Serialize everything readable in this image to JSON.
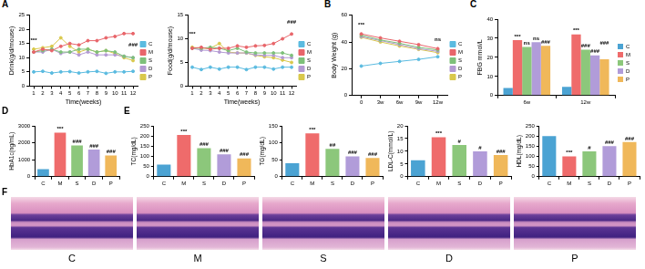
{
  "chart_data": [
    {
      "type": "line",
      "panel": "A",
      "xlabel": "Time(weeks)",
      "ylabel": "Drink(g/d/mouse)",
      "categories": [
        "1",
        "2",
        "3",
        "4",
        "5",
        "6",
        "7",
        "8",
        "9",
        "10",
        "11",
        "12"
      ],
      "series": [
        {
          "name": "C",
          "color": "#5bbbe0",
          "values": [
            5,
            5.2,
            4.6,
            5,
            5.1,
            4.6,
            5,
            5.2,
            4.5,
            5,
            5,
            5.2
          ]
        },
        {
          "name": "M",
          "color": "#e8656a",
          "values": [
            12,
            13,
            12.5,
            14,
            15,
            14.5,
            16,
            16,
            17,
            17.5,
            18.5,
            18.5
          ]
        },
        {
          "name": "S",
          "color": "#7ec07a",
          "values": [
            12,
            12.5,
            13,
            12,
            12,
            13,
            13,
            12,
            12.5,
            12,
            10.5,
            10
          ]
        },
        {
          "name": "D",
          "color": "#b39ad3",
          "values": [
            12,
            12,
            13,
            11.5,
            12,
            11,
            12,
            11,
            11,
            11,
            10.5,
            10
          ]
        },
        {
          "name": "P",
          "color": "#d9c84c",
          "values": [
            13,
            13.5,
            14,
            17,
            14,
            12,
            13,
            12,
            12.5,
            11.5,
            10,
            9
          ]
        }
      ],
      "ylim": [
        0,
        25
      ],
      "yticks": [
        0,
        5,
        10,
        15,
        20,
        25
      ],
      "grid": false,
      "legend": "right",
      "annotations": [
        {
          "text": "***",
          "x": "1",
          "y": 16
        },
        {
          "text": "###",
          "x": "12",
          "y": 14.5
        }
      ]
    },
    {
      "type": "line",
      "xlabel": "Time(weeks)",
      "ylabel": "Food(g/d/mouse)",
      "categories": [
        "1",
        "2",
        "3",
        "4",
        "5",
        "6",
        "7",
        "8",
        "9",
        "10",
        "11",
        "12"
      ],
      "series": [
        {
          "name": "C",
          "color": "#5bbbe0",
          "values": [
            4,
            3.5,
            4,
            3.6,
            4,
            4,
            3.5,
            4,
            4,
            3.6,
            4,
            4
          ]
        },
        {
          "name": "M",
          "color": "#e8656a",
          "values": [
            8,
            8.2,
            7.8,
            8,
            8,
            8.5,
            8.2,
            8.5,
            8.6,
            9,
            10,
            11
          ]
        },
        {
          "name": "S",
          "color": "#7ec07a",
          "values": [
            8,
            8,
            8.2,
            8,
            7.5,
            8,
            7.2,
            7,
            7,
            7,
            7,
            6.5
          ]
        },
        {
          "name": "D",
          "color": "#b39ad3",
          "values": [
            8,
            7.6,
            7.5,
            7.2,
            7,
            7,
            7,
            6.6,
            6.5,
            6.5,
            6,
            6
          ]
        },
        {
          "name": "P",
          "color": "#d9c84c",
          "values": [
            8.2,
            8,
            8,
            9,
            7.2,
            7,
            7,
            6.5,
            6.2,
            6,
            5.5,
            5
          ]
        }
      ],
      "ylim": [
        0,
        15
      ],
      "yticks": [
        0,
        5,
        10,
        15
      ],
      "grid": false,
      "legend": "right",
      "annotations": [
        {
          "text": "***",
          "x": "1",
          "y": 11
        },
        {
          "text": "###",
          "x": "12",
          "y": 13.5
        }
      ]
    },
    {
      "type": "line",
      "panel": "B",
      "ylabel": "Body Weight (g)",
      "categories": [
        "0",
        "3w",
        "6w",
        "9w",
        "12w"
      ],
      "series": [
        {
          "name": "C",
          "color": "#5bbbe0",
          "values": [
            22,
            24,
            25.5,
            27,
            29
          ]
        },
        {
          "name": "M",
          "color": "#e8656a",
          "values": [
            46,
            43,
            40.5,
            38,
            35
          ]
        },
        {
          "name": "S",
          "color": "#7ec07a",
          "values": [
            45,
            41.5,
            39,
            36,
            34
          ]
        },
        {
          "name": "D",
          "color": "#b39ad3",
          "values": [
            44,
            41,
            38,
            35,
            33
          ]
        },
        {
          "name": "P",
          "color": "#d9c84c",
          "values": [
            43.5,
            40,
            37,
            34.5,
            32
          ]
        }
      ],
      "ylim": [
        0,
        60
      ],
      "yticks": [
        0,
        20,
        40,
        60
      ],
      "grid": false,
      "legend": "right",
      "annotations": [
        {
          "text": "***",
          "x": "0",
          "y": 53
        },
        {
          "text": "ns",
          "x": "12w",
          "y": 42
        }
      ]
    },
    {
      "type": "bar",
      "panel": "C",
      "ylabel": "FBG mmol/L",
      "categories": [
        "6w",
        "12w"
      ],
      "series": [
        {
          "name": "C",
          "color": "#4ba3d3",
          "values": [
            4,
            4.5
          ]
        },
        {
          "name": "M",
          "color": "#ef6b6b",
          "values": [
            29,
            32
          ]
        },
        {
          "name": "S",
          "color": "#8cc77b",
          "values": [
            25.5,
            24
          ]
        },
        {
          "name": "D",
          "color": "#b19cd9",
          "values": [
            28,
            21
          ]
        },
        {
          "name": "P",
          "color": "#f0b85a",
          "values": [
            26,
            19
          ]
        }
      ],
      "ylim": [
        0,
        40
      ],
      "yticks": [
        0,
        10,
        20,
        30,
        40
      ],
      "grid": false,
      "legend": "right",
      "annotations": [
        {
          "text": "***",
          "category": "6w",
          "series": "M"
        },
        {
          "text": "ns",
          "category": "6w",
          "series": "S"
        },
        {
          "text": "ns",
          "category": "6w",
          "series": "D"
        },
        {
          "text": "###",
          "category": "6w",
          "series": "P"
        },
        {
          "text": "***",
          "category": "12w",
          "series": "M"
        },
        {
          "text": "###",
          "category": "12w",
          "series": "S"
        },
        {
          "text": "###",
          "category": "12w",
          "series": "D"
        },
        {
          "text": "###",
          "category": "12w",
          "series": "P"
        }
      ]
    },
    {
      "type": "bar",
      "panel": "D",
      "ylabel": "HbA1c(ng/mL)",
      "categories": [
        "C",
        "M",
        "S",
        "D",
        "P"
      ],
      "values": [
        450,
        2600,
        1850,
        1600,
        1250
      ],
      "colors": [
        "#4ba3d3",
        "#ef6b6b",
        "#8cc77b",
        "#b19cd9",
        "#f0b85a"
      ],
      "ylim": [
        0,
        3000
      ],
      "yticks": [
        0,
        1000,
        2000,
        3000
      ],
      "grid": false,
      "annotations": [
        {
          "text": "***",
          "category": "M"
        },
        {
          "text": "###",
          "category": "S"
        },
        {
          "text": "###",
          "category": "D"
        },
        {
          "text": "###",
          "category": "P"
        }
      ]
    },
    {
      "type": "bar",
      "panel": "E",
      "ylabel": "TC(mg/dL)",
      "categories": [
        "C",
        "M",
        "S",
        "D",
        "P"
      ],
      "values": [
        60,
        205,
        140,
        110,
        90
      ],
      "colors": [
        "#4ba3d3",
        "#ef6b6b",
        "#8cc77b",
        "#b19cd9",
        "#f0b85a"
      ],
      "ylim": [
        0,
        250
      ],
      "yticks": [
        0,
        50,
        100,
        150,
        200,
        250
      ],
      "grid": false,
      "annotations": [
        {
          "text": "***",
          "category": "M"
        },
        {
          "text": "###",
          "category": "S"
        },
        {
          "text": "###",
          "category": "D"
        },
        {
          "text": "###",
          "category": "P"
        }
      ]
    },
    {
      "type": "bar",
      "ylabel": "TG(mg/dL)",
      "categories": [
        "C",
        "M",
        "S",
        "D",
        "P"
      ],
      "values": [
        40,
        128,
        82,
        60,
        55
      ],
      "colors": [
        "#4ba3d3",
        "#ef6b6b",
        "#8cc77b",
        "#b19cd9",
        "#f0b85a"
      ],
      "ylim": [
        0,
        150
      ],
      "yticks": [
        0,
        50,
        100,
        150
      ],
      "grid": false,
      "annotations": [
        {
          "text": "***",
          "category": "M"
        },
        {
          "text": "##",
          "category": "S"
        },
        {
          "text": "###",
          "category": "D"
        },
        {
          "text": "###",
          "category": "P"
        }
      ]
    },
    {
      "type": "bar",
      "ylabel": "LDL-C(mmol/L)",
      "categories": [
        "C",
        "M",
        "S",
        "D",
        "P"
      ],
      "values": [
        6.5,
        15.5,
        12.5,
        10,
        8.5
      ],
      "colors": [
        "#4ba3d3",
        "#ef6b6b",
        "#8cc77b",
        "#b19cd9",
        "#f0b85a"
      ],
      "ylim": [
        0,
        20
      ],
      "yticks": [
        0,
        5,
        10,
        15,
        20
      ],
      "grid": false,
      "annotations": [
        {
          "text": "***",
          "category": "M"
        },
        {
          "text": "#",
          "category": "S"
        },
        {
          "text": "#",
          "category": "D"
        },
        {
          "text": "###",
          "category": "P"
        }
      ]
    },
    {
      "type": "bar",
      "ylabel": "HDL(mg/dL)",
      "categories": [
        "C",
        "M",
        "S",
        "D",
        "P"
      ],
      "values": [
        200,
        100,
        125,
        150,
        170
      ],
      "colors": [
        "#4ba3d3",
        "#ef6b6b",
        "#8cc77b",
        "#b19cd9",
        "#f0b85a"
      ],
      "ylim": [
        0,
        250
      ],
      "yticks": [
        0,
        50,
        100,
        150,
        200,
        250
      ],
      "grid": false,
      "annotations": [
        {
          "text": "***",
          "category": "M"
        },
        {
          "text": "#",
          "category": "S"
        },
        {
          "text": "###",
          "category": "D"
        },
        {
          "text": "###",
          "category": "P"
        }
      ]
    }
  ],
  "images": {
    "panel": "F",
    "labels": [
      "C",
      "M",
      "S",
      "D",
      "P"
    ]
  }
}
